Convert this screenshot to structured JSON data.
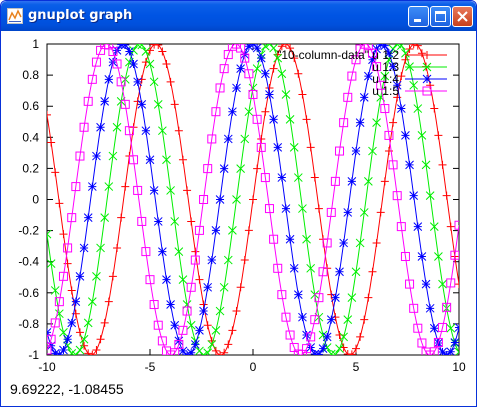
{
  "window": {
    "title": "gnuplot graph",
    "buttons": {
      "minimize": "minimize",
      "maximize": "maximize",
      "close": "close"
    }
  },
  "status": {
    "coordinates": "9.69222, -1.08455"
  },
  "colors": {
    "series1": "#ff0000",
    "series2": "#00ee00",
    "series3": "#0000ff",
    "series4": "#ff00ff",
    "titlebar": "#0054e3"
  },
  "chart_data": {
    "type": "line",
    "title": "",
    "xlabel": "",
    "ylabel": "",
    "xlim": [
      -10,
      10
    ],
    "ylim": [
      -1,
      1
    ],
    "x_ticks": [
      "-10",
      "-5",
      "0",
      "5",
      "10"
    ],
    "y_ticks": [
      "1",
      "0.8",
      "0.6",
      "0.4",
      "0.2",
      "0",
      "-0.2",
      "-0.4",
      "-0.6",
      "-0.8",
      "-1"
    ],
    "legend_position": "top-right",
    "grid": false,
    "series": [
      {
        "name": "\"10-column-data\" u 1:2",
        "function": "sin(x)",
        "phase": 0,
        "color": "#ff0000",
        "marker": "plus"
      },
      {
        "name": "u 1:3",
        "function": "sin(x+0.8)",
        "phase": 0.8,
        "color": "#00ee00",
        "marker": "cross"
      },
      {
        "name": "u 1:4",
        "function": "sin(x+1.6)",
        "phase": 1.6,
        "color": "#0000ff",
        "marker": "star"
      },
      {
        "name": "u 1:5",
        "function": "sin(x+2.4)",
        "phase": 2.4,
        "color": "#ff00ff",
        "marker": "box"
      }
    ],
    "sample_step": 0.2
  }
}
